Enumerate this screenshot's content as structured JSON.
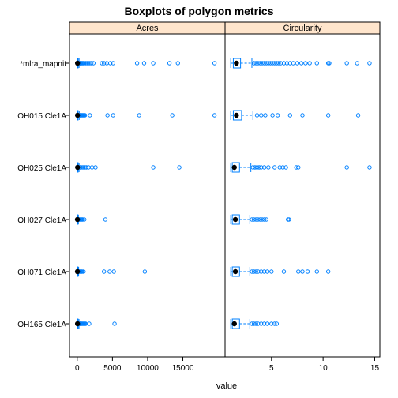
{
  "colors": {
    "box": "#0080ff",
    "strip_background": "#ffe5cc",
    "median": "#000000"
  },
  "chart_data": {
    "type": "boxplot",
    "title": "Boxplots of polygon metrics",
    "xlabel": "value",
    "groups": [
      "*mlra_mapnit",
      "OH015 Cle1A",
      "OH025 Cle1A",
      "OH027 Cle1A",
      "OH071 Cle1A",
      "OH165 Cle1A"
    ],
    "panels": [
      {
        "name": "Acres",
        "xlim": [
          -1100,
          21000
        ],
        "ticks": [
          0,
          5000,
          10000,
          15000
        ],
        "tick_labels": [
          "0",
          "5000",
          "10000",
          "15000"
        ],
        "boxes": [
          {
            "group": "*mlra_mapnit",
            "whisker_low": 0,
            "q1": 10,
            "median": 40,
            "q3": 110,
            "whisker_high": 260,
            "outliers": [
              300,
              350,
              400,
              450,
              500,
              550,
              600,
              700,
              800,
              900,
              1000,
              1200,
              1400,
              1600,
              1800,
              2000,
              2300,
              3500,
              3800,
              4200,
              4700,
              5100,
              8500,
              9500,
              10800,
              13100,
              14300,
              19500
            ]
          },
          {
            "group": "OH015 Cle1A",
            "whisker_low": 0,
            "q1": 10,
            "median": 40,
            "q3": 120,
            "whisker_high": 280,
            "outliers": [
              320,
              380,
              450,
              520,
              600,
              700,
              800,
              900,
              1000,
              1100,
              1800,
              4300,
              5100,
              8800,
              13500,
              19500
            ]
          },
          {
            "group": "OH025 Cle1A",
            "whisker_low": 0,
            "q1": 15,
            "median": 50,
            "q3": 120,
            "whisker_high": 260,
            "outliers": [
              300,
              400,
              500,
              700,
              900,
              1100,
              1300,
              1600,
              2100,
              2600,
              10800,
              14500
            ]
          },
          {
            "group": "OH027 Cle1A",
            "whisker_low": 0,
            "q1": 10,
            "median": 30,
            "q3": 80,
            "whisker_high": 170,
            "outliers": [
              200,
              250,
              300,
              400,
              500,
              600,
              700,
              800,
              1000,
              4000
            ]
          },
          {
            "group": "OH071 Cle1A",
            "whisker_low": 0,
            "q1": 10,
            "median": 30,
            "q3": 90,
            "whisker_high": 200,
            "outliers": [
              250,
              300,
              400,
              500,
              600,
              700,
              900,
              3800,
              4600,
              5200,
              9600
            ]
          },
          {
            "group": "OH165 Cle1A",
            "whisker_low": 0,
            "q1": 10,
            "median": 40,
            "q3": 110,
            "whisker_high": 250,
            "outliers": [
              300,
              350,
              400,
              450,
              500,
              550,
              600,
              700,
              800,
              900,
              1000,
              1100,
              1200,
              1700,
              5300
            ]
          }
        ]
      },
      {
        "name": "Circularity",
        "xlim": [
          0.5,
          15.5
        ],
        "ticks": [
          5,
          10,
          15
        ],
        "tick_labels": [
          "5",
          "10",
          "15"
        ],
        "boxes": [
          {
            "group": "*mlra_mapnit",
            "whisker_low": 1.05,
            "q1": 1.3,
            "median": 1.6,
            "q3": 2.0,
            "whisker_high": 3.1,
            "outliers": [
              3.3,
              3.5,
              3.7,
              3.9,
              4.1,
              4.3,
              4.5,
              4.7,
              4.9,
              5.1,
              5.3,
              5.5,
              5.7,
              5.9,
              6.2,
              6.5,
              6.8,
              7.1,
              7.5,
              7.9,
              8.3,
              8.7,
              9.4,
              10.5,
              10.6,
              12.3,
              13.3,
              14.5
            ]
          },
          {
            "group": "OH015 Cle1A",
            "whisker_low": 1.05,
            "q1": 1.3,
            "median": 1.6,
            "q3": 2.1,
            "whisker_high": 3.2,
            "outliers": [
              3.6,
              4.0,
              4.4,
              5.1,
              5.6,
              6.8,
              8.0,
              10.5,
              13.4
            ]
          },
          {
            "group": "OH025 Cle1A",
            "whisker_low": 1.05,
            "q1": 1.2,
            "median": 1.4,
            "q3": 1.9,
            "whisker_high": 3.0,
            "outliers": [
              3.2,
              3.4,
              3.6,
              3.8,
              4.0,
              4.3,
              4.7,
              5.3,
              5.8,
              6.1,
              6.4,
              7.4,
              7.6,
              12.3,
              14.5
            ]
          },
          {
            "group": "OH027 Cle1A",
            "whisker_low": 1.05,
            "q1": 1.2,
            "median": 1.5,
            "q3": 1.9,
            "whisker_high": 2.9,
            "outliers": [
              3.1,
              3.3,
              3.5,
              3.7,
              3.9,
              4.1,
              4.3,
              4.5,
              6.6,
              6.7
            ]
          },
          {
            "group": "OH071 Cle1A",
            "whisker_low": 1.05,
            "q1": 1.2,
            "median": 1.5,
            "q3": 1.9,
            "whisker_high": 2.9,
            "outliers": [
              3.1,
              3.3,
              3.5,
              3.7,
              4.0,
              4.3,
              4.6,
              5.0,
              6.2,
              7.6,
              8.0,
              8.5,
              9.4,
              10.5
            ]
          },
          {
            "group": "OH165 Cle1A",
            "whisker_low": 1.05,
            "q1": 1.2,
            "median": 1.4,
            "q3": 1.9,
            "whisker_high": 2.9,
            "outliers": [
              3.1,
              3.3,
              3.5,
              3.7,
              4.0,
              4.3,
              4.6,
              5.0,
              5.3,
              5.5
            ]
          }
        ]
      }
    ]
  }
}
